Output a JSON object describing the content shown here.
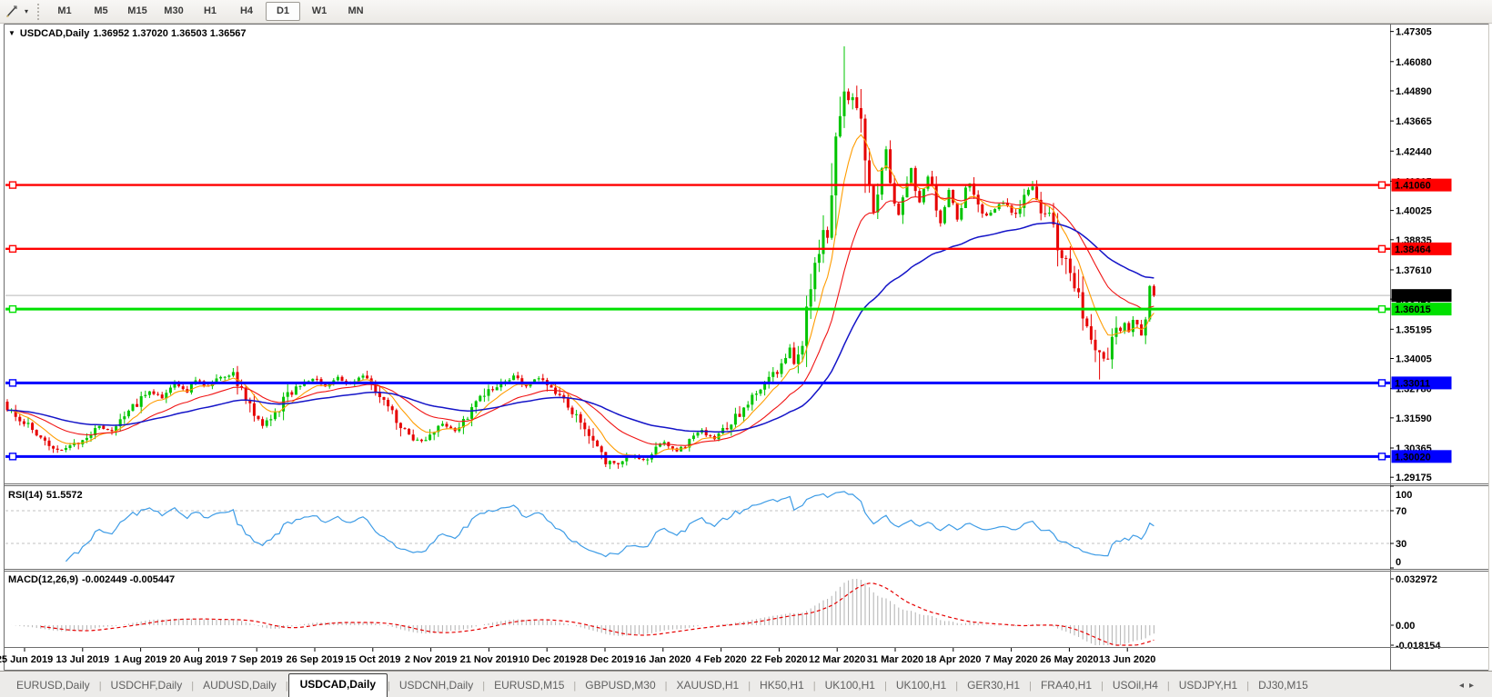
{
  "toolbar": {
    "timeframes": [
      "M1",
      "M5",
      "M15",
      "M30",
      "H1",
      "H4",
      "D1",
      "W1",
      "MN"
    ],
    "active_timeframe": "D1",
    "drawing_tool_icon": "pencil-line-tool",
    "dropdown_arrow": "▾"
  },
  "chart": {
    "title": "USDCAD,Daily",
    "ohlc_text": "1.36952 1.37020 1.36503 1.36567",
    "collapse_arrow": "▼"
  },
  "chart_data": {
    "type": "candlestick",
    "symbol": "USDCAD",
    "timeframe": "Daily",
    "title": "USDCAD,Daily 1.36952 1.37020 1.36503 1.36567",
    "last_ohlc": {
      "open": 1.36952,
      "high": 1.3702,
      "low": 1.36503,
      "close": 1.36567
    },
    "current_price": 1.36567,
    "ylim": [
      1.2896,
      1.4755
    ],
    "grid": "off",
    "num_candles": 275,
    "candle_colors": {
      "up": "#00c400",
      "down": "#e60000"
    },
    "current_price_line_color": "#b8b8b8",
    "y_axis_ticks": [
      "1.47305",
      "1.46080",
      "1.44890",
      "1.43665",
      "1.42440",
      "1.41215",
      "1.40025",
      "1.38835",
      "1.37610",
      "1.36420",
      "1.35195",
      "1.34005",
      "1.32780",
      "1.31590",
      "1.30365",
      "1.29175"
    ],
    "x_axis_labels": [
      "25 Jun 2019",
      "13 Jul 2019",
      "1 Aug 2019",
      "20 Aug 2019",
      "7 Sep 2019",
      "26 Sep 2019",
      "15 Oct 2019",
      "2 Nov 2019",
      "21 Nov 2019",
      "10 Dec 2019",
      "28 Dec 2019",
      "16 Jan 2020",
      "4 Feb 2020",
      "22 Feb 2020",
      "12 Mar 2020",
      "31 Mar 2020",
      "18 Apr 2020",
      "7 May 2020",
      "26 May 2020",
      "13 Jun 2020"
    ],
    "horizontal_lines": [
      {
        "label": "1.41060",
        "price": 1.4106,
        "color": "#ff0000",
        "width": 2.4
      },
      {
        "label": "1.38464",
        "price": 1.38464,
        "color": "#ff0000",
        "width": 2.4
      },
      {
        "label": "1.36015",
        "price": 1.36015,
        "color": "#00e000",
        "width": 3
      },
      {
        "label": "1.33011",
        "price": 1.33011,
        "color": "#0000ff",
        "width": 3
      },
      {
        "label": "1.30020",
        "price": 1.3002,
        "color": "#0000ff",
        "width": 3
      }
    ],
    "moving_averages": [
      {
        "name": "fast-ma",
        "period": 8,
        "color": "#ff9c00"
      },
      {
        "name": "medium-ma",
        "period": 22,
        "color": "#f01414"
      },
      {
        "name": "slow-ma",
        "period": 55,
        "color": "#1414c8"
      }
    ],
    "price_anchors": [
      [
        0,
        1.3195
      ],
      [
        3,
        1.316
      ],
      [
        6,
        1.3105
      ],
      [
        10,
        1.3055
      ],
      [
        13,
        1.3025
      ],
      [
        16,
        1.305
      ],
      [
        19,
        1.3085
      ],
      [
        22,
        1.3125
      ],
      [
        25,
        1.3105
      ],
      [
        28,
        1.317
      ],
      [
        31,
        1.322
      ],
      [
        34,
        1.327
      ],
      [
        37,
        1.3245
      ],
      [
        40,
        1.3305
      ],
      [
        43,
        1.327
      ],
      [
        45,
        1.3315
      ],
      [
        48,
        1.3285
      ],
      [
        51,
        1.333
      ],
      [
        54,
        1.334
      ],
      [
        56,
        1.327
      ],
      [
        59,
        1.318
      ],
      [
        61,
        1.313
      ],
      [
        64,
        1.3175
      ],
      [
        67,
        1.325
      ],
      [
        70,
        1.3295
      ],
      [
        73,
        1.332
      ],
      [
        76,
        1.329
      ],
      [
        79,
        1.3325
      ],
      [
        82,
        1.3295
      ],
      [
        85,
        1.333
      ],
      [
        87,
        1.329
      ],
      [
        90,
        1.322
      ],
      [
        93,
        1.315
      ],
      [
        96,
        1.309
      ],
      [
        99,
        1.306
      ],
      [
        101,
        1.3085
      ],
      [
        104,
        1.3135
      ],
      [
        107,
        1.3105
      ],
      [
        110,
        1.3165
      ],
      [
        113,
        1.323
      ],
      [
        115,
        1.3275
      ],
      [
        118,
        1.33
      ],
      [
        121,
        1.333
      ],
      [
        124,
        1.329
      ],
      [
        127,
        1.332
      ],
      [
        129,
        1.329
      ],
      [
        132,
        1.324
      ],
      [
        135,
        1.318
      ],
      [
        138,
        1.311
      ],
      [
        141,
        1.304
      ],
      [
        143,
        1.2985
      ],
      [
        146,
        1.2965
      ],
      [
        149,
        1.3005
      ],
      [
        152,
        1.298
      ],
      [
        155,
        1.304
      ],
      [
        157,
        1.3055
      ],
      [
        160,
        1.302
      ],
      [
        163,
        1.307
      ],
      [
        166,
        1.3105
      ],
      [
        169,
        1.3075
      ],
      [
        171,
        1.311
      ],
      [
        174,
        1.316
      ],
      [
        177,
        1.322
      ],
      [
        180,
        1.329
      ],
      [
        183,
        1.333
      ],
      [
        185,
        1.338
      ],
      [
        187,
        1.3435
      ],
      [
        188,
        1.339
      ],
      [
        190,
        1.347
      ],
      [
        191,
        1.355
      ],
      [
        192,
        1.363
      ],
      [
        193,
        1.375
      ],
      [
        194,
        1.387
      ],
      [
        195,
        1.396
      ],
      [
        196,
        1.3905
      ],
      [
        197,
        1.405
      ],
      [
        198,
        1.422
      ],
      [
        199,
        1.44
      ],
      [
        200,
        1.451
      ],
      [
        201,
        1.445
      ],
      [
        202,
        1.4495
      ],
      [
        203,
        1.4435
      ],
      [
        204,
        1.433
      ],
      [
        205,
        1.418
      ],
      [
        206,
        1.406
      ],
      [
        207,
        1.399
      ],
      [
        208,
        1.409
      ],
      [
        209,
        1.419
      ],
      [
        210,
        1.4245
      ],
      [
        211,
        1.413
      ],
      [
        212,
        1.405
      ],
      [
        213,
        1.3985
      ],
      [
        214,
        1.406
      ],
      [
        215,
        1.413
      ],
      [
        216,
        1.418
      ],
      [
        217,
        1.409
      ],
      [
        218,
        1.403
      ],
      [
        219,
        1.4085
      ],
      [
        220,
        1.4145
      ],
      [
        221,
        1.4105
      ],
      [
        222,
        1.401
      ],
      [
        223,
        1.3955
      ],
      [
        224,
        1.4015
      ],
      [
        225,
        1.4085
      ],
      [
        226,
        1.4035
      ],
      [
        227,
        1.396
      ],
      [
        228,
        1.4
      ],
      [
        229,
        1.4075
      ],
      [
        230,
        1.4115
      ],
      [
        231,
        1.4065
      ],
      [
        233,
        1.399
      ],
      [
        235,
        1.399
      ],
      [
        238,
        1.4035
      ],
      [
        241,
        1.398
      ],
      [
        243,
        1.4055
      ],
      [
        245,
        1.4105
      ],
      [
        247,
        1.3985
      ],
      [
        249,
        1.3995
      ],
      [
        251,
        1.388
      ],
      [
        253,
        1.379
      ],
      [
        255,
        1.37
      ],
      [
        257,
        1.356
      ],
      [
        259,
        1.348
      ],
      [
        261,
        1.342
      ],
      [
        262,
        1.339
      ],
      [
        263,
        1.342
      ],
      [
        264,
        1.349
      ],
      [
        265,
        1.354
      ],
      [
        266,
        1.351
      ],
      [
        267,
        1.3545
      ],
      [
        268,
        1.351
      ],
      [
        269,
        1.3555
      ],
      [
        270,
        1.353
      ],
      [
        271,
        1.347
      ],
      [
        272,
        1.356
      ],
      [
        273,
        1.3695
      ],
      [
        274,
        1.36567
      ]
    ],
    "extremes": {
      "high_wick": {
        "index": 200,
        "price": 1.467
      },
      "low_wick_dec": {
        "index": 146,
        "price": 1.2952
      },
      "low_wick_jun": {
        "index": 261,
        "price": 1.3315
      }
    },
    "indicators": [
      {
        "type": "rsi",
        "label": "RSI(14)",
        "value": "51.5572",
        "period": 14,
        "levels": [
          70,
          30
        ],
        "axis_ticks": [
          "100",
          "70",
          "30",
          "0"
        ],
        "line_color": "#3e9ce6",
        "level_color": "#c0c0c0"
      },
      {
        "type": "macd",
        "label": "MACD(12,26,9)",
        "values_text": "-0.002449 -0.005447",
        "main_value": -0.002449,
        "signal_value": -0.005447,
        "fast": 12,
        "slow": 26,
        "signal": 9,
        "axis_ticks": [
          "0.032972",
          "0.00",
          "-0.018154"
        ],
        "histogram_color": "#b0b0b0",
        "signal_color": "#e60000"
      }
    ]
  },
  "tabs": {
    "items": [
      "EURUSD,Daily",
      "USDCHF,Daily",
      "AUDUSD,Daily",
      "USDCAD,Daily",
      "USDCNH,Daily",
      "EURUSD,M15",
      "GBPUSD,M30",
      "XAUUSD,H1",
      "HK50,H1",
      "UK100,H1",
      "UK100,H1",
      "GER30,H1",
      "FRA40,H1",
      "USOil,H4",
      "USDJPY,H1",
      "DJ30,M15"
    ],
    "active_index": 3,
    "scroll_left_arrow": "◂",
    "scroll_right_arrow": "▸"
  }
}
